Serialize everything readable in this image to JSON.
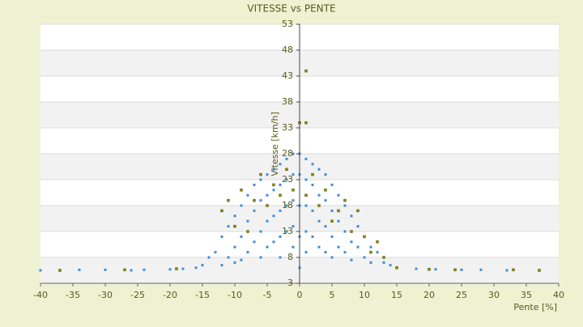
{
  "chart_data": {
    "type": "scatter",
    "title": "VITESSE vs PENTE",
    "x_label": "Pente [%]",
    "y_label": "Vitesse [km/h]",
    "xlim": [
      -40,
      40
    ],
    "ylim": [
      3,
      53
    ],
    "xticks": [
      -40,
      -35,
      -30,
      -25,
      -20,
      -15,
      -10,
      -5,
      0,
      5,
      10,
      15,
      20,
      25,
      30,
      35,
      40
    ],
    "yticks": [
      3,
      8,
      13,
      18,
      23,
      28,
      33,
      38,
      43,
      48,
      53
    ],
    "band_color": "#f2f2f2",
    "series": [
      {
        "color": "#3a8fd8",
        "x": [
          -40,
          -34,
          -30,
          -26,
          -24,
          -20,
          -18,
          -16,
          -15,
          -14,
          -13,
          -12,
          -12,
          -11,
          -11,
          -10,
          -10,
          -10,
          -9,
          -9,
          -9,
          -8,
          -8,
          -8,
          -7,
          -7,
          -7,
          -6,
          -6,
          -6,
          -6,
          -5,
          -5,
          -5,
          -5,
          -4,
          -4,
          -4,
          -4,
          -3,
          -3,
          -3,
          -3,
          -3,
          -2,
          -2,
          -2,
          -2,
          -1,
          -1,
          -1,
          -1,
          -1,
          0,
          0,
          0,
          0,
          0,
          1,
          1,
          1,
          1,
          1,
          2,
          2,
          2,
          2,
          3,
          3,
          3,
          3,
          4,
          4,
          4,
          4,
          5,
          5,
          5,
          5,
          6,
          6,
          6,
          7,
          7,
          7,
          8,
          8,
          8,
          9,
          9,
          10,
          10,
          11,
          11,
          12,
          13,
          14,
          15,
          18,
          21,
          25,
          28,
          32,
          37
        ],
        "values": [
          5.5,
          5.6,
          5.6,
          5.5,
          5.6,
          5.7,
          5.8,
          6,
          6.5,
          8,
          9,
          12,
          6.5,
          14,
          8,
          16,
          10,
          7,
          18,
          12,
          7.5,
          20,
          15,
          9,
          22,
          17,
          11,
          23,
          19,
          13,
          8,
          24,
          20,
          15,
          10,
          25,
          21,
          16,
          11,
          26,
          22,
          17,
          12,
          8,
          27,
          23,
          18,
          13,
          28,
          24,
          19,
          14,
          10,
          28,
          24,
          18,
          12,
          6,
          27,
          23,
          18,
          13,
          9,
          26,
          22,
          17,
          12,
          25,
          20,
          15,
          10,
          24,
          19,
          14,
          9,
          22,
          17,
          12,
          8,
          20,
          15,
          10,
          18,
          13,
          9,
          16,
          11,
          7.5,
          14,
          10,
          12,
          8,
          10,
          7,
          9,
          7,
          6.5,
          6,
          5.8,
          5.7,
          5.6,
          5.6,
          5.5,
          5.5
        ]
      },
      {
        "color": "#8c8c00",
        "x": [
          -37,
          -27,
          -19,
          -12,
          -11,
          -10,
          -9,
          -8,
          -7,
          -6,
          -5,
          -4,
          -3,
          -2,
          -1,
          0,
          1,
          1,
          1,
          2,
          3,
          4,
          5,
          6,
          7,
          8,
          9,
          10,
          11,
          12,
          13,
          15,
          20,
          24,
          33,
          37
        ],
        "values": [
          5.5,
          5.6,
          5.8,
          17,
          19,
          14,
          21,
          13,
          19,
          24,
          18,
          22,
          20,
          25,
          21,
          34,
          44,
          34,
          20,
          24,
          18,
          21,
          15,
          17,
          19,
          13,
          17,
          12,
          9,
          11,
          8,
          6,
          5.7,
          5.6,
          5.6,
          5.5
        ]
      }
    ]
  }
}
